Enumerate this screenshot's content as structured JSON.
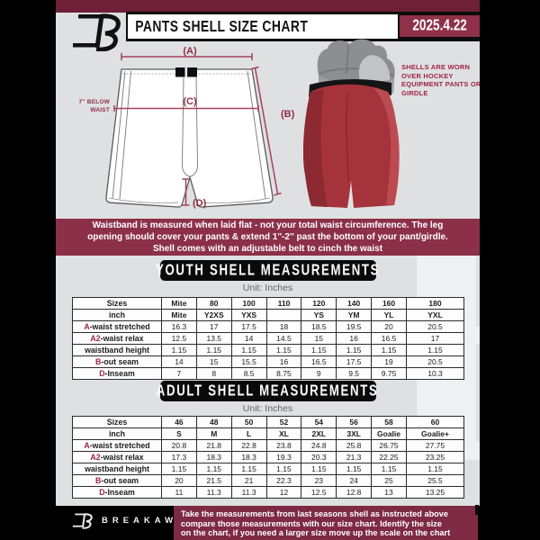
{
  "header": {
    "title": "PANTS SHELL SIZE CHART",
    "date": "2025.4.22"
  },
  "diagram": {
    "label_a": "(A)",
    "label_b": "(B)",
    "label_c": "(C)",
    "label_d": "(D)",
    "waist_note_lines": [
      "7'' BELOW",
      "WAIST"
    ]
  },
  "photo_caption": "SHELLS ARE WORN OVER HOCKEY EQUIPMENT PANTS OR GIRDLE",
  "info_banner_lines": [
    "Waistband is measured when laid flat - not your total waist circumference. The leg",
    "opening should cover your pants & extend 1''-2'' past the bottom of your pant/girdle.",
    "Shell comes with an adjustable belt to cinch the waist"
  ],
  "sections": {
    "youth": {
      "heading": "YOUTH SHELL MEASUREMENTS",
      "unit": "Unit: Inches",
      "table": {
        "rows": [
          {
            "prefix": "",
            "label": "Sizes",
            "header": true,
            "values": [
              "Mite",
              "80",
              "100",
              "110",
              "120",
              "140",
              "160",
              "180"
            ]
          },
          {
            "prefix": "",
            "label": "inch",
            "header": true,
            "values": [
              "Mite",
              "Y2XS",
              "YXS",
              "",
              "YS",
              "YM",
              "YL",
              "YXL"
            ]
          },
          {
            "prefix": "A",
            "label": "-waist stretched",
            "values": [
              "16.3",
              "17",
              "17.5",
              "18",
              "18.5",
              "19.5",
              "20",
              "20.5"
            ]
          },
          {
            "prefix": "A2",
            "label": "-waist relax",
            "values": [
              "12.5",
              "13.5",
              "14",
              "14.5",
              "15",
              "16",
              "16.5",
              "17"
            ]
          },
          {
            "prefix": "",
            "label": "waistband height",
            "values": [
              "1.15",
              "1.15",
              "1.15",
              "1.15",
              "1.15",
              "1.15",
              "1.15",
              "1.15"
            ]
          },
          {
            "prefix": "B",
            "label": "-out seam",
            "values": [
              "14",
              "15",
              "15.5",
              "16",
              "16.5",
              "17.5",
              "19",
              "20.5"
            ]
          },
          {
            "prefix": "D",
            "label": "-Inseam",
            "values": [
              "7",
              "8",
              "8.5",
              "8.75",
              "9",
              "9.5",
              "9.75",
              "10.3"
            ]
          }
        ]
      }
    },
    "adult": {
      "heading": "ADULT SHELL MEASUREMENTS",
      "unit": "Unit: Inches",
      "table": {
        "rows": [
          {
            "prefix": "",
            "label": "Sizes",
            "header": true,
            "values": [
              "46",
              "48",
              "50",
              "52",
              "54",
              "56",
              "58",
              "60"
            ]
          },
          {
            "prefix": "",
            "label": "inch",
            "header": true,
            "values": [
              "S",
              "M",
              "L",
              "XL",
              "2XL",
              "3XL",
              "Goalie",
              "Goalie+"
            ]
          },
          {
            "prefix": "A",
            "label": "-waist stretched",
            "values": [
              "20.8",
              "21.8",
              "22.8",
              "23.8",
              "24.8",
              "25.8",
              "26.75",
              "27.75"
            ]
          },
          {
            "prefix": "A2",
            "label": "-waist relax",
            "values": [
              "17.3",
              "18.3",
              "18.3",
              "19.3",
              "20.3",
              "21.3",
              "22.25",
              "23.25"
            ]
          },
          {
            "prefix": "",
            "label": "waistband height",
            "values": [
              "1.15",
              "1.15",
              "1.15",
              "1.15",
              "1.15",
              "1.15",
              "1.15",
              "1.15"
            ]
          },
          {
            "prefix": "B",
            "label": "-out seam",
            "values": [
              "20",
              "21.5",
              "21",
              "22.3",
              "23",
              "24",
              "25",
              "25.5"
            ]
          },
          {
            "prefix": "D",
            "label": "-Inseam",
            "values": [
              "11",
              "11.3",
              "11.3",
              "12",
              "12.5",
              "12.8",
              "13",
              "13.25"
            ]
          }
        ]
      }
    }
  },
  "footer": {
    "brand": "BREAKAWAY",
    "note_lines": [
      "Take the measurements from last seasons shell as instructed above",
      "compare those measurements  with our size chart. Identify the size",
      "on the chart, if you need a larger size move up the scale on the chart"
    ]
  },
  "watermark_glyph": "B",
  "colors": {
    "accent_maroon": "#8c3049",
    "dark_maroon_strip": "#6d2038",
    "black_bar": "#0c0c0c",
    "page_gray": "#dfe0e2",
    "shell_red": "#a5333b"
  }
}
